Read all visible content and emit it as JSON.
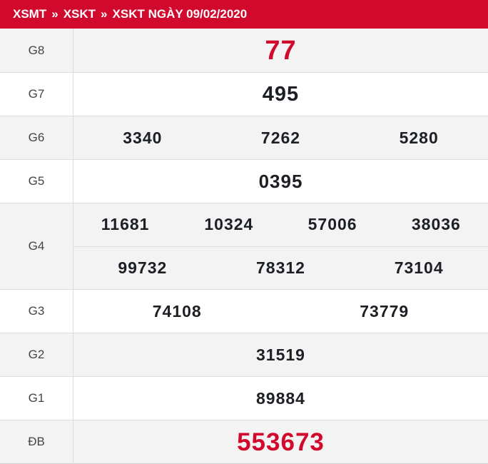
{
  "colors": {
    "header_bg": "#d1092c",
    "accent_red": "#d1092c",
    "number_dark": "#1c1f24",
    "row_alt_bg": "#f3f3f3",
    "row_bg": "#ffffff",
    "border": "#dddddd",
    "label_text": "#444444"
  },
  "header": {
    "separator": "»",
    "items": [
      {
        "label": "XSMT"
      },
      {
        "label": "XSKT"
      },
      {
        "label": "XSKT NGÀY 09/02/2020"
      }
    ]
  },
  "table": {
    "rows": [
      {
        "label": "G8",
        "lines": [
          [
            "77"
          ]
        ]
      },
      {
        "label": "G7",
        "lines": [
          [
            "495"
          ]
        ]
      },
      {
        "label": "G6",
        "lines": [
          [
            "3340",
            "7262",
            "5280"
          ]
        ]
      },
      {
        "label": "G5",
        "lines": [
          [
            "0395"
          ]
        ]
      },
      {
        "label": "G4",
        "lines": [
          [
            "11681",
            "10324",
            "57006",
            "38036"
          ],
          [
            "99732",
            "78312",
            "73104"
          ]
        ]
      },
      {
        "label": "G3",
        "lines": [
          [
            "74108",
            "73779"
          ]
        ]
      },
      {
        "label": "G2",
        "lines": [
          [
            "31519"
          ]
        ]
      },
      {
        "label": "G1",
        "lines": [
          [
            "89884"
          ]
        ]
      },
      {
        "label": "ĐB",
        "lines": [
          [
            "553673"
          ]
        ]
      }
    ]
  }
}
